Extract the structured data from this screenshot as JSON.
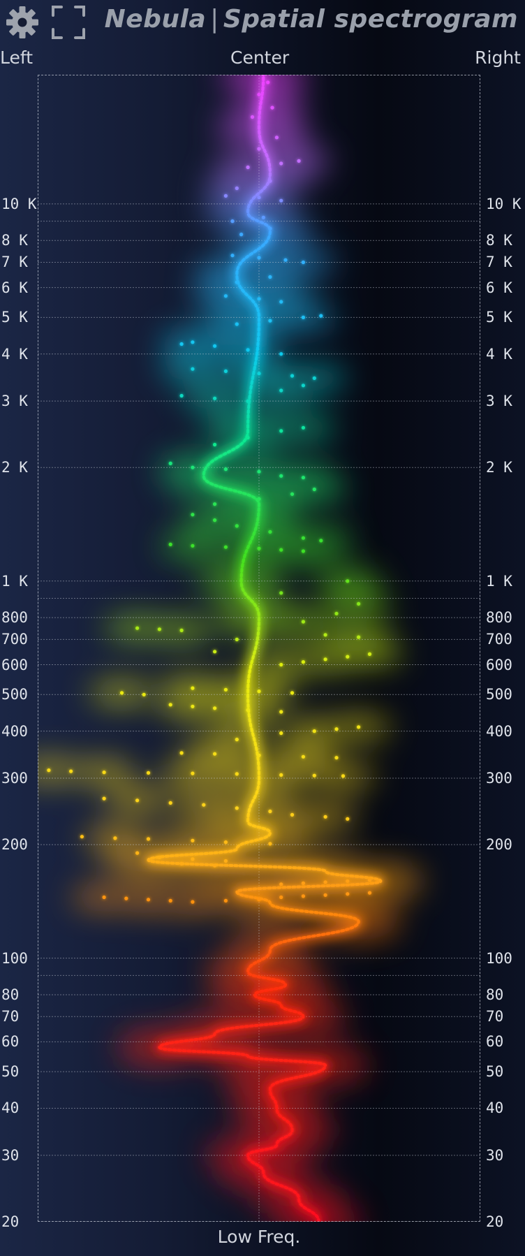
{
  "header": {
    "title_part1": "Nebula",
    "title_separator": "|",
    "title_part2": "Spatial spectrogram",
    "settings_icon": "gear-icon",
    "fullscreen_icon": "fullscreen-icon"
  },
  "colors": {
    "title": "#9aa0ab",
    "label": "#d2d6de",
    "grid": "#c8ccd6",
    "spectrum_low": "#ff1020",
    "spectrum_high": "#e040ff"
  },
  "chart_data": {
    "type": "scatter",
    "xlabel": "Low Freq.",
    "pan_labels": {
      "left": "Left",
      "center": "Center",
      "right": "Right"
    },
    "xlim": [
      -1,
      1
    ],
    "ylim": [
      20,
      22000
    ],
    "yscale": "log",
    "grid": true,
    "y_ticks": [
      {
        "value": 20,
        "label": "20"
      },
      {
        "value": 30,
        "label": "30"
      },
      {
        "value": 40,
        "label": "40"
      },
      {
        "value": 50,
        "label": "50"
      },
      {
        "value": 60,
        "label": "60"
      },
      {
        "value": 70,
        "label": "70"
      },
      {
        "value": 80,
        "label": "80"
      },
      {
        "value": 100,
        "label": "100"
      },
      {
        "value": 200,
        "label": "200"
      },
      {
        "value": 300,
        "label": "300"
      },
      {
        "value": 400,
        "label": "400"
      },
      {
        "value": 500,
        "label": "500"
      },
      {
        "value": 600,
        "label": "600"
      },
      {
        "value": 700,
        "label": "700"
      },
      {
        "value": 800,
        "label": "800"
      },
      {
        "value": 1000,
        "label": "1 K"
      },
      {
        "value": 2000,
        "label": "2 K"
      },
      {
        "value": 3000,
        "label": "3 K"
      },
      {
        "value": 4000,
        "label": "4 K"
      },
      {
        "value": 5000,
        "label": "5 K"
      },
      {
        "value": 6000,
        "label": "6 K"
      },
      {
        "value": 7000,
        "label": "7 K"
      },
      {
        "value": 8000,
        "label": "8 K"
      },
      {
        "value": 10000,
        "label": "10 K"
      }
    ],
    "unlabeled_grid": [
      90,
      900,
      9000
    ],
    "trace": {
      "points": [
        [
          0.27,
          20
        ],
        [
          0.18,
          23
        ],
        [
          0.02,
          27
        ],
        [
          -0.05,
          30
        ],
        [
          0.08,
          32
        ],
        [
          0.15,
          35
        ],
        [
          0.08,
          40
        ],
        [
          0.05,
          45
        ],
        [
          0.3,
          52
        ],
        [
          -0.05,
          55
        ],
        [
          -0.45,
          58
        ],
        [
          -0.2,
          63
        ],
        [
          0.2,
          70
        ],
        [
          0.1,
          75
        ],
        [
          -0.02,
          80
        ],
        [
          0.12,
          85
        ],
        [
          -0.05,
          92
        ],
        [
          0.05,
          105
        ],
        [
          0.45,
          125
        ],
        [
          0.05,
          140
        ],
        [
          -0.1,
          150
        ],
        [
          0.55,
          160
        ],
        [
          0.3,
          170
        ],
        [
          -0.5,
          182
        ],
        [
          -0.1,
          195
        ],
        [
          0.05,
          215
        ],
        [
          -0.05,
          230
        ],
        [
          0.0,
          300
        ],
        [
          -0.05,
          500
        ],
        [
          0.0,
          800
        ],
        [
          -0.08,
          1000
        ],
        [
          0.0,
          1600
        ],
        [
          -0.25,
          1900
        ],
        [
          -0.05,
          2500
        ],
        [
          0.0,
          5000
        ],
        [
          -0.1,
          6500
        ],
        [
          0.05,
          8500
        ],
        [
          -0.05,
          9500
        ],
        [
          0.05,
          12000
        ],
        [
          0.0,
          16000
        ],
        [
          0.02,
          22000
        ]
      ]
    },
    "scatter_points": [
      [
        -0.55,
        190
      ],
      [
        -0.45,
        185
      ],
      [
        -0.3,
        183
      ],
      [
        -0.15,
        181
      ],
      [
        -0.35,
        178
      ],
      [
        -0.2,
        176
      ],
      [
        -0.7,
        145
      ],
      [
        -0.6,
        144
      ],
      [
        -0.5,
        143
      ],
      [
        -0.4,
        142
      ],
      [
        -0.3,
        141
      ],
      [
        -0.15,
        142
      ],
      [
        0.0,
        143
      ],
      [
        0.1,
        145
      ],
      [
        0.2,
        146
      ],
      [
        0.3,
        147
      ],
      [
        0.4,
        148
      ],
      [
        0.5,
        149
      ],
      [
        0.2,
        158
      ],
      [
        0.3,
        159
      ],
      [
        0.4,
        160
      ],
      [
        0.5,
        161
      ],
      [
        0.1,
        157
      ],
      [
        -0.8,
        210
      ],
      [
        -0.65,
        208
      ],
      [
        -0.5,
        207
      ],
      [
        -0.3,
        205
      ],
      [
        -0.15,
        203
      ],
      [
        0.05,
        201
      ],
      [
        -0.7,
        265
      ],
      [
        -0.55,
        262
      ],
      [
        -0.4,
        258
      ],
      [
        -0.25,
        255
      ],
      [
        -0.1,
        250
      ],
      [
        0.05,
        245
      ],
      [
        0.15,
        240
      ],
      [
        0.3,
        237
      ],
      [
        0.4,
        234
      ],
      [
        -0.95,
        315
      ],
      [
        -0.85,
        313
      ],
      [
        -0.7,
        311
      ],
      [
        -0.5,
        310
      ],
      [
        -0.3,
        309
      ],
      [
        -0.1,
        308
      ],
      [
        0.1,
        306
      ],
      [
        0.25,
        305
      ],
      [
        0.38,
        304
      ],
      [
        -0.35,
        350
      ],
      [
        -0.2,
        348
      ],
      [
        0.0,
        345
      ],
      [
        0.2,
        342
      ],
      [
        0.35,
        340
      ],
      [
        -0.1,
        380
      ],
      [
        0.1,
        395
      ],
      [
        0.25,
        400
      ],
      [
        0.35,
        405
      ],
      [
        0.45,
        410
      ],
      [
        -0.4,
        470
      ],
      [
        -0.3,
        465
      ],
      [
        -0.2,
        460
      ],
      [
        -0.05,
        455
      ],
      [
        0.1,
        450
      ],
      [
        -0.3,
        520
      ],
      [
        -0.15,
        515
      ],
      [
        0.0,
        510
      ],
      [
        0.15,
        505
      ],
      [
        -0.62,
        505
      ],
      [
        -0.52,
        500
      ],
      [
        0.1,
        600
      ],
      [
        0.2,
        610
      ],
      [
        0.3,
        620
      ],
      [
        0.4,
        630
      ],
      [
        0.5,
        640
      ],
      [
        -0.2,
        650
      ],
      [
        -0.55,
        750
      ],
      [
        -0.45,
        745
      ],
      [
        -0.35,
        740
      ],
      [
        0.3,
        720
      ],
      [
        0.45,
        710
      ],
      [
        -0.1,
        700
      ],
      [
        0.2,
        780
      ],
      [
        0.35,
        820
      ],
      [
        0.45,
        870
      ],
      [
        0.1,
        930
      ],
      [
        0.4,
        1000
      ],
      [
        -0.4,
        1250
      ],
      [
        -0.3,
        1240
      ],
      [
        -0.15,
        1230
      ],
      [
        0.0,
        1220
      ],
      [
        0.1,
        1210
      ],
      [
        0.2,
        1200
      ],
      [
        -0.3,
        1500
      ],
      [
        -0.2,
        1450
      ],
      [
        -0.1,
        1400
      ],
      [
        0.05,
        1350
      ],
      [
        0.2,
        1300
      ],
      [
        0.28,
        1280
      ],
      [
        -0.2,
        1600
      ],
      [
        0.0,
        1650
      ],
      [
        0.15,
        1700
      ],
      [
        0.25,
        1750
      ],
      [
        -0.4,
        2050
      ],
      [
        -0.3,
        2000
      ],
      [
        -0.15,
        1980
      ],
      [
        0.0,
        1950
      ],
      [
        0.1,
        1900
      ],
      [
        0.2,
        1880
      ],
      [
        -0.2,
        2300
      ],
      [
        -0.05,
        2400
      ],
      [
        0.1,
        2500
      ],
      [
        0.2,
        2550
      ],
      [
        -0.35,
        3100
      ],
      [
        -0.2,
        3050
      ],
      [
        -0.05,
        3000
      ],
      [
        0.1,
        3200
      ],
      [
        0.2,
        3300
      ],
      [
        -0.3,
        3650
      ],
      [
        -0.15,
        3600
      ],
      [
        0.0,
        3550
      ],
      [
        0.15,
        3500
      ],
      [
        0.25,
        3450
      ],
      [
        -0.2,
        4200
      ],
      [
        -0.05,
        4100
      ],
      [
        0.1,
        4000
      ],
      [
        -0.3,
        4300
      ],
      [
        -0.35,
        4250
      ],
      [
        -0.1,
        4800
      ],
      [
        0.05,
        4900
      ],
      [
        0.2,
        5000
      ],
      [
        0.28,
        5050
      ],
      [
        -0.15,
        5700
      ],
      [
        0.0,
        5600
      ],
      [
        0.1,
        5500
      ],
      [
        -0.1,
        6200
      ],
      [
        0.05,
        6400
      ],
      [
        -0.12,
        7300
      ],
      [
        0.0,
        7200
      ],
      [
        0.12,
        7100
      ],
      [
        0.2,
        7000
      ],
      [
        -0.08,
        8300
      ],
      [
        0.05,
        8600
      ],
      [
        -0.12,
        9000
      ],
      [
        0.02,
        9200
      ],
      [
        -0.15,
        10500
      ],
      [
        0.0,
        10400
      ],
      [
        0.1,
        10200
      ],
      [
        -0.1,
        11000
      ],
      [
        0.05,
        11500
      ],
      [
        -0.05,
        12500
      ],
      [
        0.1,
        12800
      ],
      [
        0.18,
        13000
      ],
      [
        0.0,
        14000
      ],
      [
        0.08,
        15000
      ],
      [
        -0.03,
        17000
      ],
      [
        0.06,
        18000
      ],
      [
        0.0,
        19500
      ],
      [
        0.04,
        21000
      ]
    ]
  }
}
